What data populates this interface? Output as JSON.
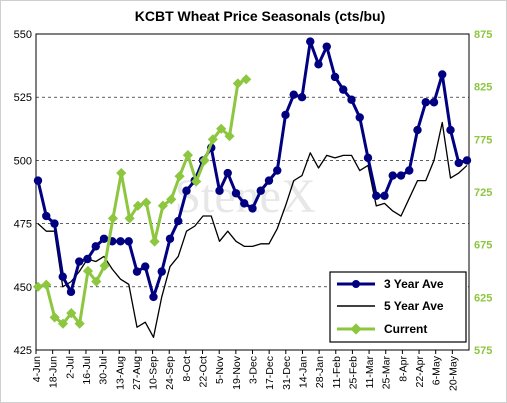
{
  "chart_data": {
    "type": "line",
    "title": "KCBT Wheat Price Seasonals (cts/bu)",
    "watermark": "SteneX",
    "x_labels": [
      "4-Jun",
      "18-Jun",
      "2-Jul",
      "16-Jul",
      "30-Jul",
      "13-Aug",
      "27-Aug",
      "10-Sep",
      "24-Sep",
      "8-Oct",
      "22-Oct",
      "5-Nov",
      "19-Nov",
      "3-Dec",
      "17-Dec",
      "31-Dec",
      "14-Jan",
      "28-Jan",
      "11-Feb",
      "25-Feb",
      "11-Mar",
      "25-Mar",
      "8-Apr",
      "22-Apr",
      "6-May",
      "20-May"
    ],
    "y_left": {
      "min": 425,
      "max": 550,
      "ticks": [
        425,
        450,
        475,
        500,
        525,
        550
      ]
    },
    "y_right": {
      "min": 575,
      "max": 875,
      "ticks": [
        575,
        625,
        675,
        725,
        775,
        825,
        875
      ]
    },
    "series": [
      {
        "name": "3 Year Ave",
        "axis": "left",
        "color": "#000080",
        "marker": "circle",
        "values": [
          492,
          478,
          475,
          454,
          448,
          460,
          461,
          466,
          469,
          468,
          468,
          468,
          456,
          458,
          446,
          456,
          469,
          476,
          488,
          492,
          500,
          505,
          488,
          495,
          487,
          483,
          481,
          488,
          492,
          496,
          518,
          526,
          525,
          547,
          538,
          545,
          533,
          528,
          524,
          517,
          501,
          486,
          486,
          494,
          494,
          496,
          512,
          523,
          523,
          534,
          512,
          499,
          500
        ]
      },
      {
        "name": "5 Year Ave",
        "axis": "left",
        "color": "#000000",
        "marker": "none",
        "values": [
          475,
          472,
          472,
          450,
          452,
          456,
          461,
          460,
          462,
          457,
          453,
          451,
          434,
          436,
          430,
          446,
          458,
          462,
          472,
          474,
          478,
          478,
          468,
          472,
          468,
          466,
          466,
          467,
          467,
          473,
          482,
          492,
          494,
          503,
          497,
          502,
          501,
          502,
          502,
          496,
          498,
          482,
          483,
          480,
          478,
          485,
          492,
          492,
          500,
          515,
          493,
          495,
          498
        ]
      },
      {
        "name": "Current",
        "axis": "right",
        "color": "#8dc63f",
        "marker": "diamond",
        "values": [
          635,
          637,
          606,
          600,
          610,
          600,
          650,
          640,
          655,
          700,
          743,
          700,
          712,
          715,
          678,
          712,
          718,
          740,
          760,
          735,
          755,
          775,
          785,
          778,
          828,
          832
        ]
      }
    ],
    "legend": {
      "position": "bottom-right",
      "entries": [
        "3 Year Ave",
        "5 Year Ave",
        "Current"
      ]
    },
    "grid": true
  }
}
